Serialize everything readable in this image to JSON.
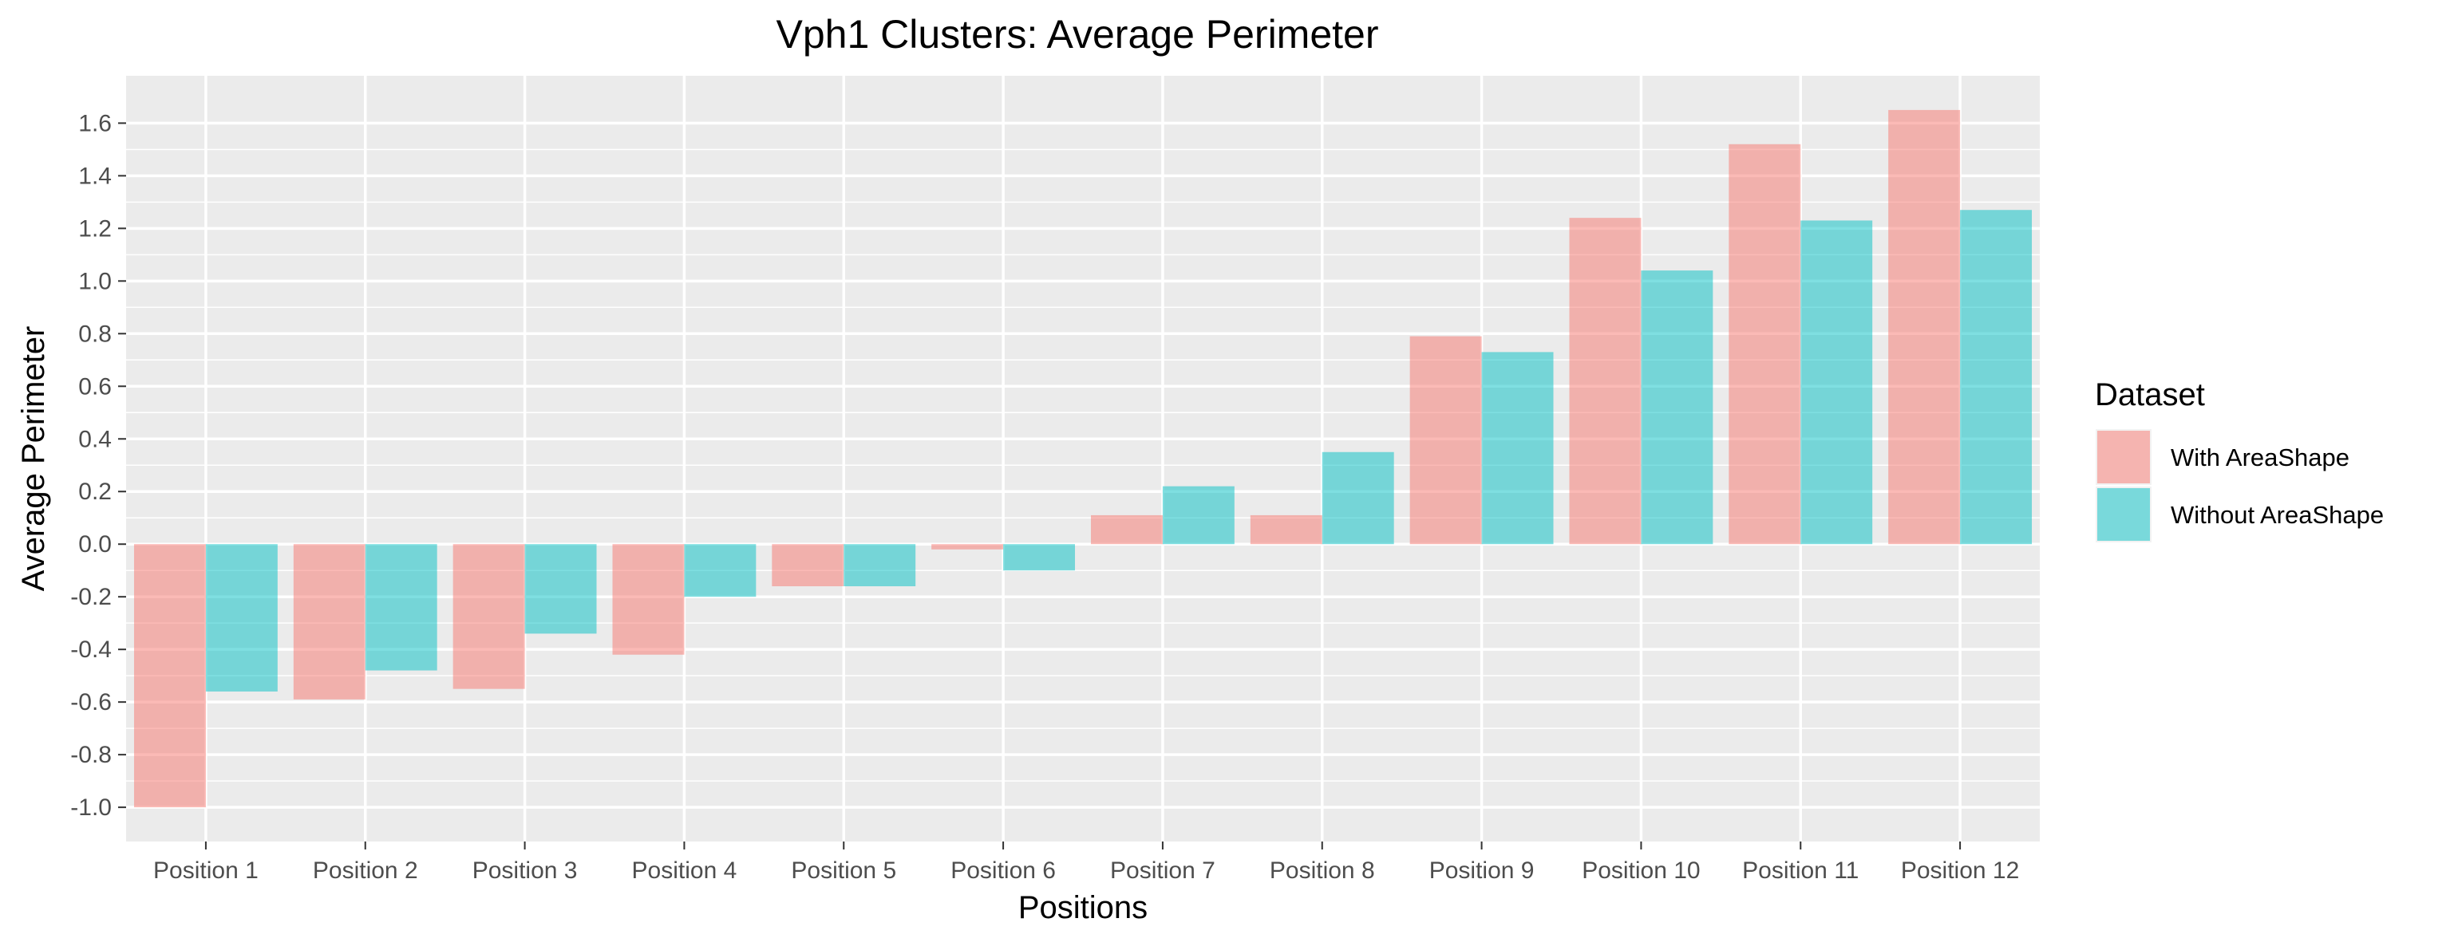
{
  "chart_data": {
    "type": "bar",
    "title": "Vph1 Clusters: Average Perimeter",
    "xlabel": "Positions",
    "ylabel": "Average Perimeter",
    "categories": [
      "Position 1",
      "Position 2",
      "Position 3",
      "Position 4",
      "Position 5",
      "Position 6",
      "Position 7",
      "Position 8",
      "Position 9",
      "Position 10",
      "Position 11",
      "Position 12"
    ],
    "series": [
      {
        "name": "With AreaShape",
        "color": "#F8766D",
        "values": [
          -1.0,
          -0.59,
          -0.55,
          -0.42,
          -0.16,
          -0.02,
          0.11,
          0.11,
          0.79,
          1.24,
          1.52,
          1.65
        ]
      },
      {
        "name": "Without AreaShape",
        "color": "#00BFC4",
        "values": [
          -0.56,
          -0.48,
          -0.34,
          -0.2,
          -0.16,
          -0.1,
          0.22,
          0.35,
          0.73,
          1.04,
          1.23,
          1.27
        ]
      }
    ],
    "ylim": [
      -1.13,
      1.78
    ],
    "yticks": [
      "1.6",
      "1.4",
      "1.2",
      "1.0",
      "0.8",
      "0.6",
      "0.4",
      "0.2",
      "0.0",
      "-0.2",
      "-0.4",
      "-0.6",
      "-0.8",
      "-1.0"
    ],
    "legend": {
      "title": "Dataset",
      "position": "right"
    },
    "grid": true,
    "panel_background": "#EBEBEB",
    "bar_opacity": 0.5
  }
}
